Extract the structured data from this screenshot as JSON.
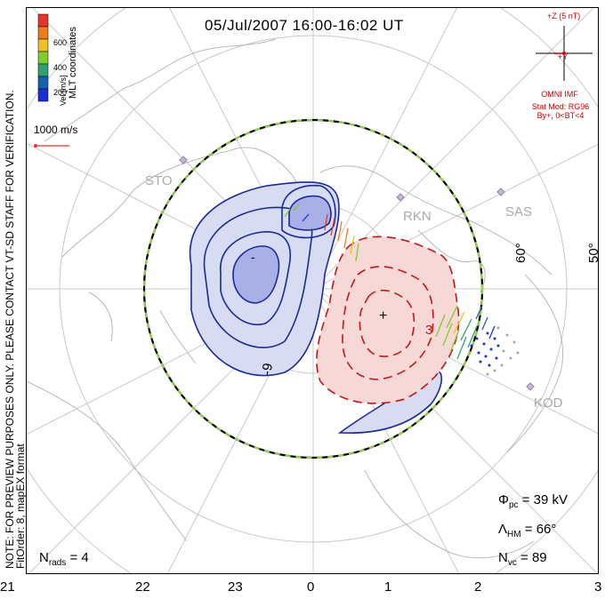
{
  "title": "05/Jul/2007 16:00-16:02 UT",
  "colorbar": {
    "label": "Vel [m/s]",
    "ticks": [
      "600",
      "400",
      "200"
    ],
    "colors": [
      "#e8352a",
      "#f07d1a",
      "#f0c020",
      "#7ccf2a",
      "#30a070",
      "#1560b0",
      "#1a2fd8"
    ]
  },
  "coordinates_label": "MLT coordinates",
  "scale_vector_label": "1000 m/s",
  "imf": {
    "z_label": "+Z (5 nT)",
    "y_label": "+Y",
    "source": "OMNI IMF",
    "model": "Stat Mod: RG96",
    "condition": "By+, 0<BT<4"
  },
  "sites": [
    "STO",
    "RKN",
    "SAS",
    "KOD"
  ],
  "latitude_labels": [
    "60°",
    "50°"
  ],
  "contour_labels": [
    "-",
    "-9",
    "+",
    "3"
  ],
  "stats": {
    "phi_symbol": "Φ",
    "phi_sub": "pc",
    "phi_value": "= 39 kV",
    "lambda_symbol": "Λ",
    "lambda_sub": "HM",
    "lambda_value": "= 66°",
    "nvc_symbol": "N",
    "nvc_sub": "vc",
    "nvc_value": "= 89",
    "nrads_symbol": "N",
    "nrads_sub": "rads",
    "nrads_value": "= 4"
  },
  "note": "NOTE: FOR PREVIEW PURPOSES ONLY. PLEASE CONTACT VT-SD STAFF FOR VERIFICATION.",
  "fit_order": "FitOrder: 8, mapEX format",
  "time_axis": [
    "21",
    "22",
    "23",
    "0",
    "1",
    "2",
    "3"
  ],
  "colors": {
    "negative_fill": "#d8dcf2",
    "negative_line": "#1a2a9a",
    "positive_fill": "#f6d8d6",
    "positive_line": "#c01818",
    "grid": "#c8c8c8",
    "coast": "#b8b8b8",
    "hm_boundary_dash": "#8fd04a"
  }
}
